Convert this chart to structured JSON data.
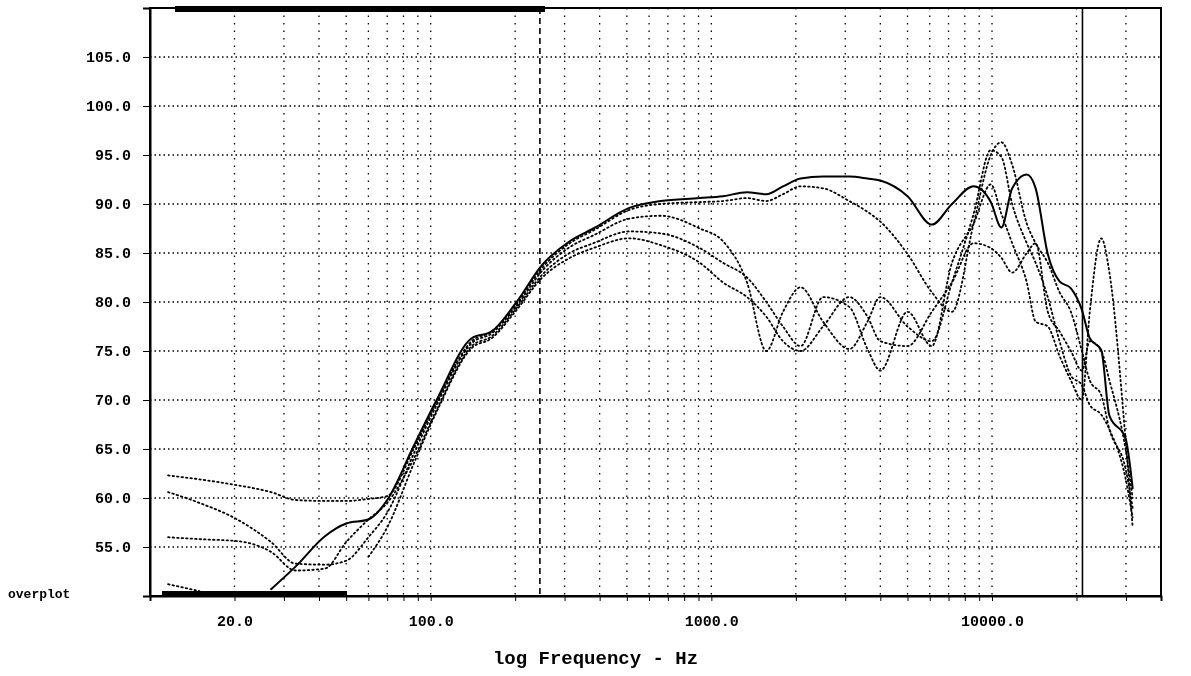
{
  "chart_data": {
    "type": "line",
    "xlabel": "log Frequency - Hz",
    "log": "x",
    "grid": true,
    "marker": "none",
    "xlim": [
      10,
      40000
    ],
    "ylim": [
      50,
      110
    ],
    "xticks": [
      {
        "value": 20,
        "label": "20.0"
      },
      {
        "value": 30,
        "label": null
      },
      {
        "value": 40,
        "label": null
      },
      {
        "value": 50,
        "label": null
      },
      {
        "value": 60,
        "label": null
      },
      {
        "value": 70,
        "label": null
      },
      {
        "value": 80,
        "label": null
      },
      {
        "value": 90,
        "label": null
      },
      {
        "value": 100,
        "label": "100.0"
      },
      {
        "value": 200,
        "label": null
      },
      {
        "value": 300,
        "label": null
      },
      {
        "value": 400,
        "label": null
      },
      {
        "value": 500,
        "label": null
      },
      {
        "value": 600,
        "label": null
      },
      {
        "value": 700,
        "label": null
      },
      {
        "value": 800,
        "label": null
      },
      {
        "value": 900,
        "label": null
      },
      {
        "value": 1000,
        "label": "1000.0"
      },
      {
        "value": 2000,
        "label": null
      },
      {
        "value": 3000,
        "label": null
      },
      {
        "value": 4000,
        "label": null
      },
      {
        "value": 5000,
        "label": null
      },
      {
        "value": 6000,
        "label": null
      },
      {
        "value": 7000,
        "label": null
      },
      {
        "value": 8000,
        "label": null
      },
      {
        "value": 9000,
        "label": null
      },
      {
        "value": 10000,
        "label": "10000.0"
      },
      {
        "value": 20000,
        "label": null
      },
      {
        "value": 30000,
        "label": null
      }
    ],
    "yticks": [
      {
        "value": 55,
        "label": "55.0"
      },
      {
        "value": 60,
        "label": "60.0"
      },
      {
        "value": 65,
        "label": "65.0"
      },
      {
        "value": 70,
        "label": "70.0"
      },
      {
        "value": 75,
        "label": "75.0"
      },
      {
        "value": 80,
        "label": "80.0"
      },
      {
        "value": 85,
        "label": "85.0"
      },
      {
        "value": 90,
        "label": "90.0"
      },
      {
        "value": 95,
        "label": "95.0"
      },
      {
        "value": 100,
        "label": "100.0"
      },
      {
        "value": 105,
        "label": "105.0"
      }
    ],
    "x": [
      11.6,
      15,
      20.5,
      27,
      33,
      42,
      50,
      60,
      70,
      87,
      105,
      140,
      165,
      200,
      250,
      313,
      380,
      510,
      660,
      910,
      1100,
      1340,
      1570,
      1800,
      2080,
      2500,
      3100,
      3600,
      4000,
      5000,
      6100,
      7200,
      8600,
      9900,
      10800,
      11800,
      13300,
      14300,
      15800,
      17400,
      19100,
      20900,
      22300,
      24500,
      26200,
      29900,
      31700
    ],
    "series": [
      {
        "color": "#000000",
        "line_style": "solid",
        "values": [
          null,
          null,
          null,
          50.7,
          53,
          56.1,
          57.4,
          57.8,
          59.8,
          65.3,
          70,
          76.3,
          77,
          79.8,
          83.8,
          86.2,
          87.5,
          89.6,
          90.3,
          90.6,
          90.8,
          91.2,
          91,
          91.8,
          92.6,
          92.8,
          92.8,
          92.6,
          92.4,
          90.8,
          87.9,
          90,
          91.8,
          90.2,
          87.6,
          91.6,
          93,
          91.6,
          84.9,
          82.1,
          81.4,
          79.2,
          76.3,
          75.1,
          68.4,
          66.1,
          61
        ]
      },
      {
        "color": "#000000",
        "line_style": "dotted",
        "values": [
          62.3,
          61.9,
          61.3,
          60.6,
          59.8,
          59.7,
          59.7,
          59.9,
          60.2,
          65,
          69.8,
          76,
          77,
          79.6,
          83.5,
          86,
          87.3,
          89.4,
          90,
          90.2,
          90.3,
          90.6,
          90.3,
          91,
          91.8,
          91.6,
          90.3,
          89.2,
          88.2,
          84.9,
          81,
          79,
          88,
          95,
          96.3,
          94,
          88,
          86,
          84,
          81,
          79,
          75,
          72,
          70.5,
          67,
          63,
          59
        ]
      },
      {
        "color": "#000000",
        "line_style": "dotted",
        "values": [
          60.6,
          59.5,
          57.8,
          55.5,
          53.3,
          53.2,
          53.6,
          56,
          58.5,
          64.5,
          69.5,
          75.8,
          76.8,
          79.4,
          83.2,
          85.6,
          86.8,
          88.5,
          88.8,
          87.5,
          86.2,
          82,
          75,
          79,
          81.5,
          78,
          75.2,
          78,
          80.5,
          77.5,
          76,
          82,
          89,
          95.5,
          94.8,
          90,
          86,
          84,
          80.5,
          76,
          72.5,
          71.5,
          69.5,
          68.5,
          67,
          62,
          58
        ]
      },
      {
        "color": "#000000",
        "line_style": "dotted",
        "values": [
          56,
          55.8,
          55.6,
          54.5,
          52.6,
          52.8,
          55.5,
          57.8,
          59.5,
          64,
          69,
          75.5,
          76.5,
          79.2,
          82.8,
          85,
          86,
          87.2,
          87,
          85.5,
          84,
          82.5,
          80,
          77.5,
          75.5,
          80.5,
          79.5,
          75.2,
          73,
          79,
          75.5,
          84,
          88,
          92,
          89,
          86,
          82,
          78,
          77.5,
          74.5,
          72,
          70,
          79,
          86.5,
          83,
          66,
          57
        ]
      },
      {
        "color": "#000000",
        "line_style": "dotted",
        "values": [
          51.2,
          50.5,
          null,
          null,
          null,
          null,
          null,
          54,
          57,
          63.5,
          68.8,
          75.3,
          76.3,
          79,
          82.5,
          84.5,
          85.5,
          86.5,
          85.8,
          84,
          82,
          80.5,
          78.5,
          76,
          75,
          77.5,
          80.5,
          78.5,
          76,
          75.5,
          79,
          82,
          86,
          85.5,
          84.5,
          83,
          85,
          86,
          79,
          77,
          75,
          73,
          76,
          75,
          72,
          65,
          60
        ]
      }
    ],
    "ref_lines": [
      {
        "axis": "x",
        "value": 245,
        "color": "#000000",
        "line_style": "dashed"
      },
      {
        "axis": "x",
        "value": 21000,
        "color": "#000000",
        "line_style": "solid"
      }
    ],
    "annotations": [
      "overplot"
    ]
  }
}
